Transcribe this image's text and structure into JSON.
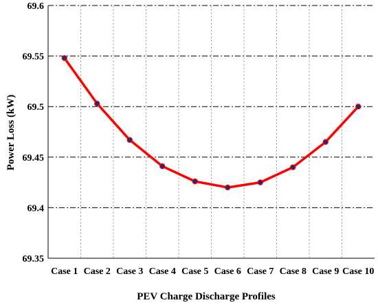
{
  "chart_data": {
    "type": "line",
    "title": "",
    "xlabel": "PEV Charge Discharge Profiles",
    "ylabel": "Power Loss (kW)",
    "categories": [
      "Case 1",
      "Case 2",
      "Case 3",
      "Case 4",
      "Case 5",
      "Case 6",
      "Case 7",
      "Case 8",
      "Case 9",
      "Case 10"
    ],
    "series": [
      {
        "values": [
          69.548,
          69.503,
          69.467,
          69.441,
          69.426,
          69.42,
          69.425,
          69.44,
          69.465,
          69.5
        ],
        "line_color": "#ff0000",
        "marker_color": "#1f2a7a"
      }
    ],
    "ylim": [
      69.35,
      69.6
    ],
    "yticks": [
      "69.35",
      "69.4",
      "69.45",
      "69.5",
      "69.55",
      "69.6"
    ],
    "grid": true,
    "legend": "none"
  }
}
